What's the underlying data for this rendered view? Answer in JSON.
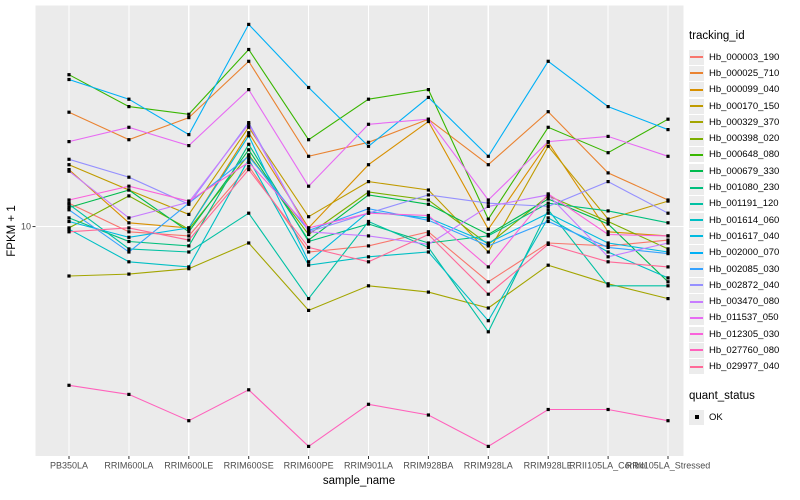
{
  "chart_data": {
    "type": "line",
    "title": "",
    "xlabel": "sample_name",
    "ylabel": "FPKM + 1",
    "x_categories": [
      "PB350LA",
      "RRIM600LA",
      "RRIM600LE",
      "RRIM600SE",
      "RRIM600PE",
      "RRIM901LA",
      "RRIM928BA",
      "RRIM928LA",
      "RRIM928LE",
      "RRII105LA_Control",
      "RRII105LA_Stressed"
    ],
    "y_axis": {
      "scale": "log10",
      "tick_labels": [
        "10"
      ],
      "range_approx": [
        1.67,
        56.1
      ],
      "grid_value": 10
    },
    "panel": {
      "bg": "#EBEBEB",
      "grid": "#FFFFFF",
      "tick_color": "#333333"
    },
    "point_marker": {
      "shape": "square",
      "color": "#000000"
    },
    "legend": {
      "tracking_title": "tracking_id",
      "quant_title": "quant_status",
      "quant_items": [
        {
          "label": "OK"
        }
      ]
    },
    "series": [
      {
        "name": "Hb_000003_190",
        "color": "#F8766D",
        "values": [
          12.0,
          9.6,
          9.3,
          16.0,
          8.2,
          8.6,
          9.6,
          6.5,
          8.8,
          8.6,
          9.0
        ]
      },
      {
        "name": "Hb_000025_710",
        "color": "#EA8331",
        "values": [
          24.4,
          19.7,
          23.4,
          36.3,
          17.3,
          19.3,
          23.1,
          16.2,
          24.5,
          15.2,
          12.3
        ]
      },
      {
        "name": "Hb_000099_040",
        "color": "#D89000",
        "values": [
          15.6,
          10.3,
          9.9,
          20.8,
          9.9,
          16.2,
          22.7,
          9.8,
          19.3,
          9.6,
          9.3
        ]
      },
      {
        "name": "Hb_000170_150",
        "color": "#C09B00",
        "values": [
          16.2,
          13.3,
          11.0,
          21.7,
          10.8,
          14.2,
          13.3,
          8.2,
          18.7,
          10.6,
          12.2
        ]
      },
      {
        "name": "Hb_000329_370",
        "color": "#A3A500",
        "values": [
          6.8,
          6.9,
          7.2,
          8.8,
          5.2,
          6.3,
          6.0,
          5.3,
          7.4,
          6.4,
          5.7
        ]
      },
      {
        "name": "Hb_000398_020",
        "color": "#7CAE00",
        "values": [
          9.9,
          12.7,
          9.8,
          17.5,
          9.4,
          13.1,
          12.3,
          8.7,
          12.7,
          10.4,
          8.4
        ]
      },
      {
        "name": "Hb_000648_080",
        "color": "#39B600",
        "values": [
          32.7,
          25.5,
          24.0,
          39.8,
          19.7,
          27.0,
          29.1,
          10.6,
          21.7,
          17.8,
          23.1
        ]
      },
      {
        "name": "Hb_000679_330",
        "color": "#00BB4E",
        "values": [
          11.6,
          13.3,
          9.6,
          18.2,
          9.0,
          12.8,
          11.9,
          9.4,
          12.4,
          10.2,
          6.5
        ]
      },
      {
        "name": "Hb_001080_230",
        "color": "#00BF7D",
        "values": [
          10.7,
          8.9,
          8.6,
          19.0,
          8.9,
          10.2,
          8.8,
          9.3,
          12.0,
          11.3,
          10.3
        ]
      },
      {
        "name": "Hb_001191_120",
        "color": "#00C1A3",
        "values": [
          11.9,
          8.4,
          8.2,
          11.1,
          5.7,
          10.4,
          8.5,
          4.4,
          11.4,
          6.3,
          6.3
        ]
      },
      {
        "name": "Hb_001614_060",
        "color": "#00BFC4",
        "values": [
          9.8,
          7.6,
          7.3,
          16.9,
          7.4,
          7.9,
          8.2,
          4.8,
          10.7,
          8.2,
          6.7
        ]
      },
      {
        "name": "Hb_001617_040",
        "color": "#00BAE0",
        "values": [
          10.4,
          9.2,
          9.9,
          20.3,
          7.6,
          11.2,
          10.7,
          8.8,
          11.1,
          8.8,
          8.2
        ]
      },
      {
        "name": "Hb_002000_070",
        "color": "#00B0F6",
        "values": [
          31.5,
          27.0,
          20.5,
          48.4,
          29.6,
          18.7,
          27.4,
          17.3,
          36.3,
          25.5,
          21.3
        ]
      },
      {
        "name": "Hb_002085_030",
        "color": "#35A2FF",
        "values": [
          11.4,
          8.2,
          12.0,
          17.3,
          9.7,
          11.5,
          10.5,
          8.6,
          10.4,
          8.5,
          8.1
        ]
      },
      {
        "name": "Hb_002872_040",
        "color": "#9590FF",
        "values": [
          16.9,
          14.7,
          11.9,
          22.5,
          9.6,
          11.1,
          12.8,
          12.0,
          11.7,
          14.2,
          11.1
        ]
      },
      {
        "name": "Hb_003470_080",
        "color": "#C77CFF",
        "values": [
          15.4,
          10.7,
          12.1,
          22.2,
          9.6,
          9.3,
          8.7,
          11.7,
          12.8,
          7.9,
          8.8
        ]
      },
      {
        "name": "Hb_011537_050",
        "color": "#E76BF3",
        "values": [
          19.4,
          21.7,
          18.8,
          29.1,
          13.7,
          22.2,
          23.1,
          12.3,
          19.4,
          20.2,
          17.3
        ]
      },
      {
        "name": "Hb_012305_030",
        "color": "#FA62DB",
        "values": [
          12.3,
          13.7,
          12.2,
          16.5,
          9.9,
          11.1,
          10.9,
          7.3,
          12.9,
          9.4,
          9.3
        ]
      },
      {
        "name": "Hb_027760_080",
        "color": "#FF62BC",
        "values": [
          2.9,
          2.7,
          2.2,
          2.8,
          1.8,
          2.5,
          2.3,
          1.8,
          2.4,
          2.4,
          2.2
        ]
      },
      {
        "name": "Hb_029977_040",
        "color": "#FF6A98",
        "values": [
          9.6,
          9.9,
          9.0,
          15.6,
          8.5,
          7.6,
          9.4,
          5.9,
          8.7,
          7.6,
          7.3
        ]
      }
    ]
  }
}
